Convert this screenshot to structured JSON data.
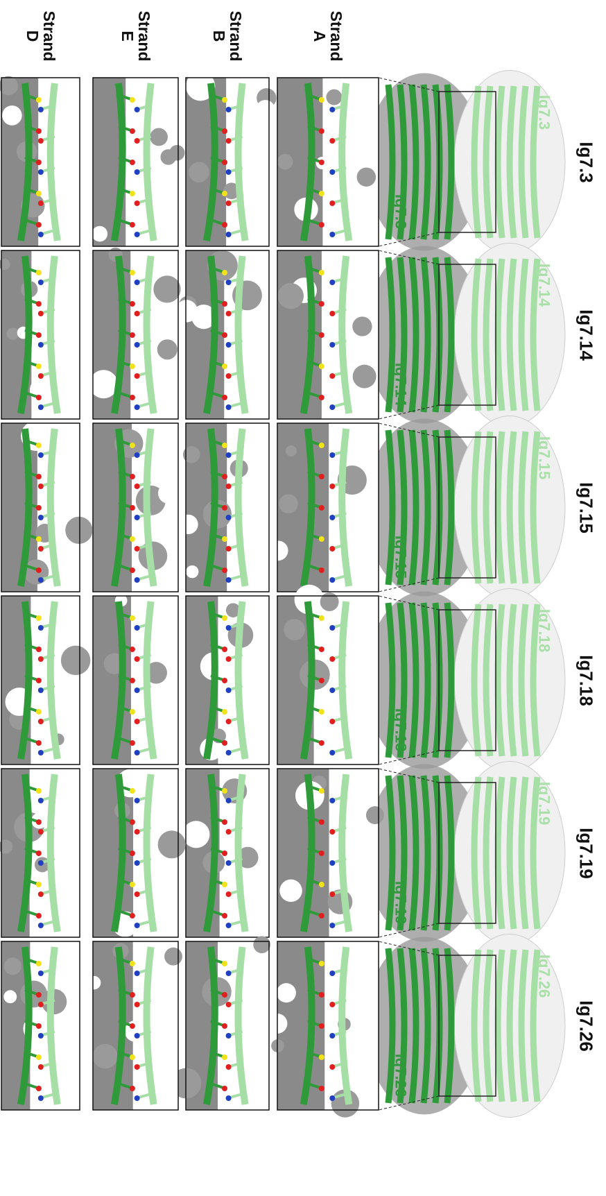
{
  "rows": [
    "Strand A",
    "Strand B",
    "Strand E",
    "Strand D"
  ],
  "columns": [
    {
      "title": "Ig7.3",
      "label_light": "Ig7.3",
      "label_dark": "Ig7.3"
    },
    {
      "title": "Ig7.14",
      "label_light": "Ig7.14",
      "label_dark": "Ig7.14"
    },
    {
      "title": "Ig7.15",
      "label_light": "Ig7.15",
      "label_dark": "Ig7.15"
    },
    {
      "title": "Ig7.18",
      "label_light": "Ig7.18",
      "label_dark": "Ig7.18"
    },
    {
      "title": "Ig7.19",
      "label_light": "Ig7.19",
      "label_dark": "Ig7.19"
    },
    {
      "title": "Ig7.26",
      "label_light": "Ig7.26",
      "label_dark": "Ig7.26"
    }
  ]
}
